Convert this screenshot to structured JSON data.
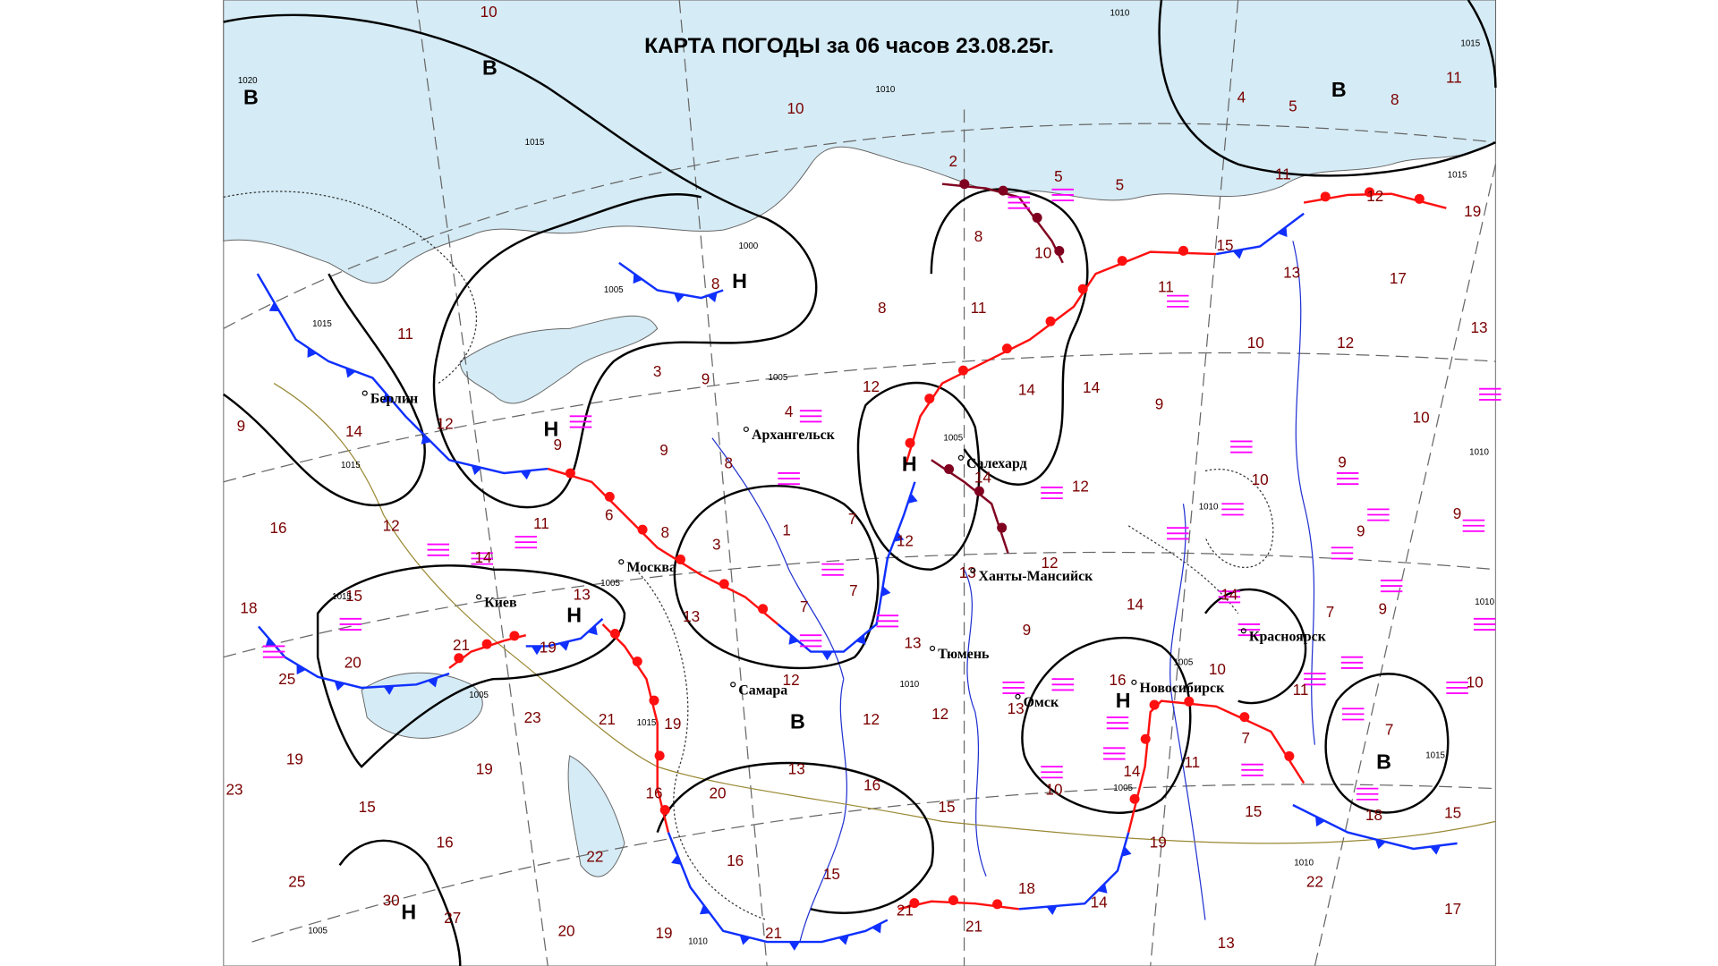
{
  "title": "КАРТА ПОГОДЫ за 06 часов 23.08.25г.",
  "cities": [
    "Берлин",
    "Архангельск",
    "Салехард",
    "Ханты-Мансийск",
    "Москва",
    "Киев",
    "Тюмень",
    "Самара",
    "Омск",
    "Новосибирск",
    "Красноярск"
  ],
  "pressure_centers": [
    "В",
    "В",
    "В",
    "Н",
    "Н",
    "Н",
    "Н",
    "В",
    "Н",
    "В",
    "Н"
  ],
  "temperatures": [
    10,
    10,
    4,
    5,
    8,
    11,
    2,
    5,
    5,
    11,
    12,
    19,
    8,
    10,
    15,
    13,
    17,
    8,
    8,
    11,
    11,
    10,
    12,
    13,
    11,
    3,
    9,
    12,
    14,
    14,
    9,
    10,
    9,
    14,
    12,
    9,
    4,
    9,
    8,
    14,
    12,
    9,
    10,
    9,
    9,
    16,
    12,
    11,
    6,
    8,
    3,
    1,
    7,
    12,
    12,
    13,
    14,
    15,
    13,
    7,
    7,
    14,
    14,
    9,
    7,
    18,
    21,
    19,
    13,
    13,
    9,
    10,
    20,
    25,
    12,
    11,
    10,
    13,
    12,
    12,
    16,
    23,
    21,
    19,
    7,
    7,
    19,
    19,
    13,
    11,
    14,
    23,
    15,
    16,
    20,
    16,
    15,
    10,
    15,
    18,
    15,
    16,
    19,
    22,
    16,
    15,
    22,
    25,
    30,
    27,
    18,
    14,
    21,
    21,
    17,
    20,
    19,
    21,
    13
  ],
  "isobar_labels": [
    1020,
    1015,
    1010,
    1010,
    1015,
    1015,
    1000,
    1005,
    1005,
    1015,
    1015,
    1005,
    1010,
    1010,
    1010,
    1015,
    1005,
    1005,
    1015,
    1010,
    1005,
    1005,
    1015,
    1010,
    1010,
    1005
  ]
}
